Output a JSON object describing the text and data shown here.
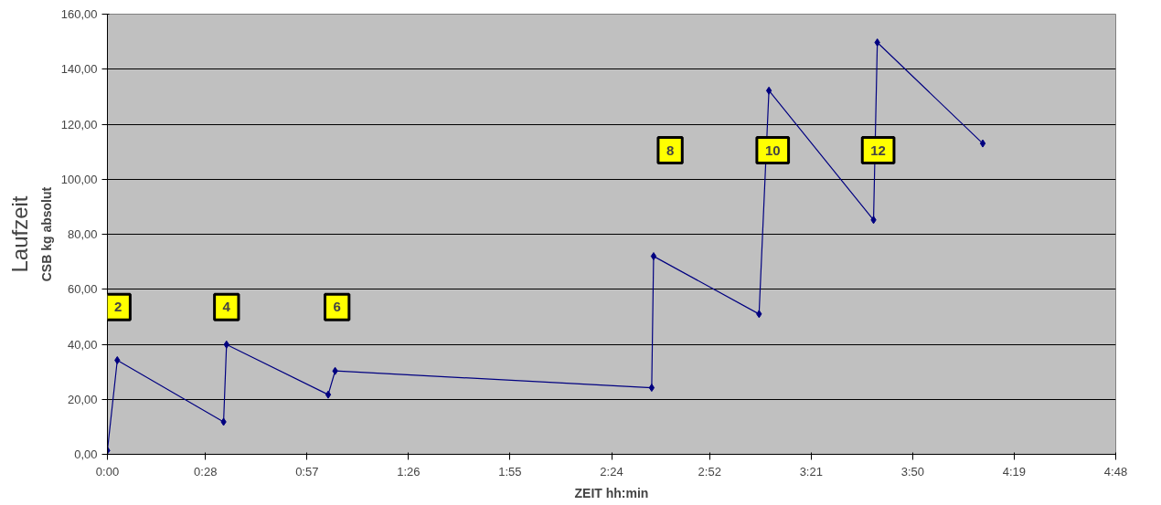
{
  "chart_data": {
    "type": "line",
    "xlabel": "ZEIT hh:min",
    "ylabel": "CSB kg absolut",
    "x": [
      0,
      0.047,
      0.553,
      0.567,
      1.051,
      1.084,
      2.591,
      2.6,
      3.102,
      3.149,
      3.647,
      3.665,
      4.167
    ],
    "series": [
      {
        "color": "#000080",
        "values": [
          1.4,
          34.2,
          11.8,
          39.9,
          21.7,
          30.3,
          24.2,
          72.0,
          51.0,
          132.2,
          85.2,
          149.7,
          113.0
        ]
      }
    ],
    "xlim": [
      0,
      4.8
    ],
    "xticks": [
      {
        "value": 0,
        "label": "0:00"
      },
      {
        "value": 0.4667,
        "label": "0:28"
      },
      {
        "value": 0.95,
        "label": "0:57"
      },
      {
        "value": 1.4333,
        "label": "1:26"
      },
      {
        "value": 1.9167,
        "label": "1:55"
      },
      {
        "value": 2.4,
        "label": "2:24"
      },
      {
        "value": 2.8667,
        "label": "2:52"
      },
      {
        "value": 3.35,
        "label": "3:21"
      },
      {
        "value": 3.8333,
        "label": "3:50"
      },
      {
        "value": 4.3167,
        "label": "4:19"
      },
      {
        "value": 4.8,
        "label": "4:48"
      }
    ],
    "ylim": [
      0,
      160
    ],
    "yticks": [
      {
        "value": 0,
        "label": "0,00"
      },
      {
        "value": 20,
        "label": "20,00"
      },
      {
        "value": 40,
        "label": "40,00"
      },
      {
        "value": 60,
        "label": "60,00"
      },
      {
        "value": 80,
        "label": "80,00"
      },
      {
        "value": 100,
        "label": "100,00"
      },
      {
        "value": 120,
        "label": "120,00"
      },
      {
        "value": 140,
        "label": "140,00"
      },
      {
        "value": 160,
        "label": "160,00"
      }
    ],
    "grid": "y",
    "marker": "diamond",
    "line_style": "solid",
    "annotations": [
      {
        "text": "2",
        "x": 0.051,
        "y": 53.5
      },
      {
        "text": "4",
        "x": 0.567,
        "y": 53.5
      },
      {
        "text": "6",
        "x": 1.093,
        "y": 53.5
      },
      {
        "text": "8",
        "x": 2.679,
        "y": 110.5
      },
      {
        "text": "10",
        "x": 3.167,
        "y": 110.5
      },
      {
        "text": "12",
        "x": 3.669,
        "y": 110.5
      },
      "Laufzeit"
    ]
  }
}
